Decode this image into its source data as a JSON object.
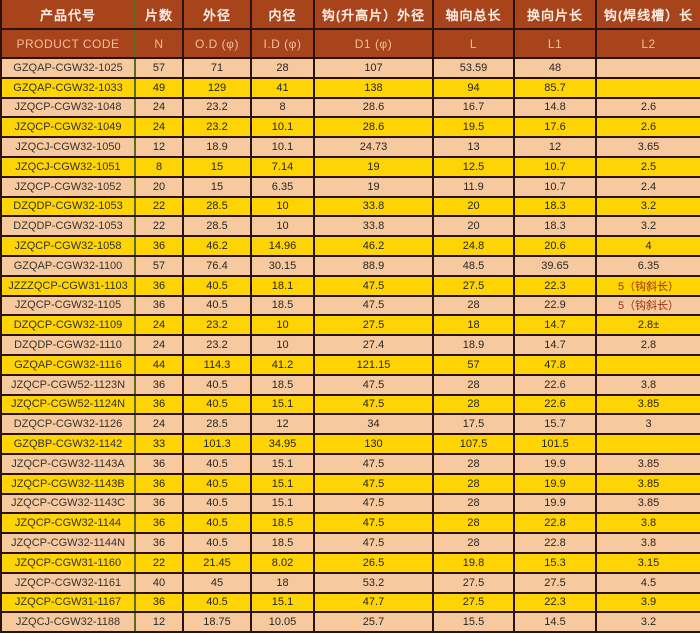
{
  "colors": {
    "header_bg": "#a7441b",
    "header_cn_text": "#ffede4",
    "header_en_text": "#f3be97",
    "row_peach": "#f7c99e",
    "row_yellow": "#ffd405",
    "grid_dark": "#2b120a",
    "grid_olive": "#5c6b1f",
    "data_text": "#262626",
    "special_note_text": "#9b3210"
  },
  "table": {
    "headers_cn": [
      "产品代号",
      "片数",
      "外径",
      "内径",
      "钩(升高片）外径",
      "轴向总长",
      "换向片长",
      "钩(焊线槽）长"
    ],
    "headers_en": [
      "PRODUCT CODE",
      "N",
      "O.D (φ)",
      "I.D (φ)",
      "D1 (φ)",
      "L",
      "L1",
      "L2"
    ],
    "field_names": [
      "product-code",
      "n",
      "od",
      "id",
      "d1",
      "l",
      "l1",
      "l2"
    ],
    "rows": [
      [
        "GZQAP-CGW32-1025",
        "57",
        "71",
        "28",
        "107",
        "53.59",
        "48",
        ""
      ],
      [
        "GZQAP-CGW32-1033",
        "49",
        "129",
        "41",
        "138",
        "94",
        "85.7",
        ""
      ],
      [
        "JZQCP-CGW32-1048",
        "24",
        "23.2",
        "8",
        "28.6",
        "16.7",
        "14.8",
        "2.6"
      ],
      [
        "JZQCP-CGW32-1049",
        "24",
        "23.2",
        "10.1",
        "28.6",
        "19.5",
        "17.6",
        "2.6"
      ],
      [
        "JZQCJ-CGW32-1050",
        "12",
        "18.9",
        "10.1",
        "24.73",
        "13",
        "12",
        "3.65"
      ],
      [
        "JZQCJ-CGW32-1051",
        "8",
        "15",
        "7.14",
        "19",
        "12.5",
        "10.7",
        "2.5"
      ],
      [
        "JZQCP-CGW32-1052",
        "20",
        "15",
        "6.35",
        "19",
        "11.9",
        "10.7",
        "2.4"
      ],
      [
        "DZQDP-CGW32-1053",
        "22",
        "28.5",
        "10",
        "33.8",
        "20",
        "18.3",
        "3.2"
      ],
      [
        "DZQDP-CGW32-1053",
        "22",
        "28.5",
        "10",
        "33.8",
        "20",
        "18.3",
        "3.2"
      ],
      [
        "JZQCP-CGW32-1058",
        "36",
        "46.2",
        "14.96",
        "46.2",
        "24.8",
        "20.6",
        "4"
      ],
      [
        "GZQAP-CGW32-1100",
        "57",
        "76.4",
        "30.15",
        "88.9",
        "48.5",
        "39.65",
        "6.35"
      ],
      [
        "JZZZQCP-CGW31-1103",
        "36",
        "40.5",
        "18.1",
        "47.5",
        "27.5",
        "22.3",
        "5（钩斜长）"
      ],
      [
        "JZQCP-CGW32-1105",
        "36",
        "40.5",
        "18.5",
        "47.5",
        "28",
        "22.9",
        "5（钩斜长）"
      ],
      [
        "DZQCP-CGW32-1109",
        "24",
        "23.2",
        "10",
        "27.5",
        "18",
        "14.7",
        "2.8±"
      ],
      [
        "DZQDP-CGW32-1110",
        "24",
        "23.2",
        "10",
        "27.4",
        "18.9",
        "14.7",
        "2.8"
      ],
      [
        "GZQAP-CGW32-1116",
        "44",
        "114.3",
        "41.2",
        "121.15",
        "57",
        "47.8",
        ""
      ],
      [
        "JZQCP-CGW52-1123N",
        "36",
        "40.5",
        "18.5",
        "47.5",
        "28",
        "22.6",
        "3.8"
      ],
      [
        "JZQCP-CGW52-1124N",
        "36",
        "40.5",
        "15.1",
        "47.5",
        "28",
        "22.6",
        "3.85"
      ],
      [
        "DZQCP-CGW32-1126",
        "24",
        "28.5",
        "12",
        "34",
        "17.5",
        "15.7",
        "3"
      ],
      [
        "GZQBP-CGW32-1142",
        "33",
        "101.3",
        "34.95",
        "130",
        "107.5",
        "101.5",
        ""
      ],
      [
        "JZQCP-CGW32-1143A",
        "36",
        "40.5",
        "15.1",
        "47.5",
        "28",
        "19.9",
        "3.85"
      ],
      [
        "JZQCP-CGW32-1143B",
        "36",
        "40.5",
        "15.1",
        "47.5",
        "28",
        "19.9",
        "3.85"
      ],
      [
        "JZQCP-CGW32-1143C",
        "36",
        "40.5",
        "15.1",
        "47.5",
        "28",
        "19.9",
        "3.85"
      ],
      [
        "JZQCP-CGW32-1144",
        "36",
        "40.5",
        "18.5",
        "47.5",
        "28",
        "22.8",
        "3.8"
      ],
      [
        "JZQCP-CGW32-1144N",
        "36",
        "40.5",
        "18.5",
        "47.5",
        "28",
        "22.8",
        "3.8"
      ],
      [
        "JZQCP-CGW31-1160",
        "22",
        "21.45",
        "8.02",
        "26.5",
        "19.8",
        "15.3",
        "3.15"
      ],
      [
        "JZQCP-CGW32-1161",
        "40",
        "45",
        "18",
        "53.2",
        "27.5",
        "27.5",
        "4.5"
      ],
      [
        "JZQCP-CGW31-1167",
        "36",
        "40.5",
        "15.1",
        "47.7",
        "27.5",
        "22.3",
        "3.9"
      ],
      [
        "JZQCJ-CGW32-1188",
        "12",
        "18.75",
        "10.05",
        "25.7",
        "15.5",
        "14.5",
        "3.2"
      ]
    ]
  }
}
